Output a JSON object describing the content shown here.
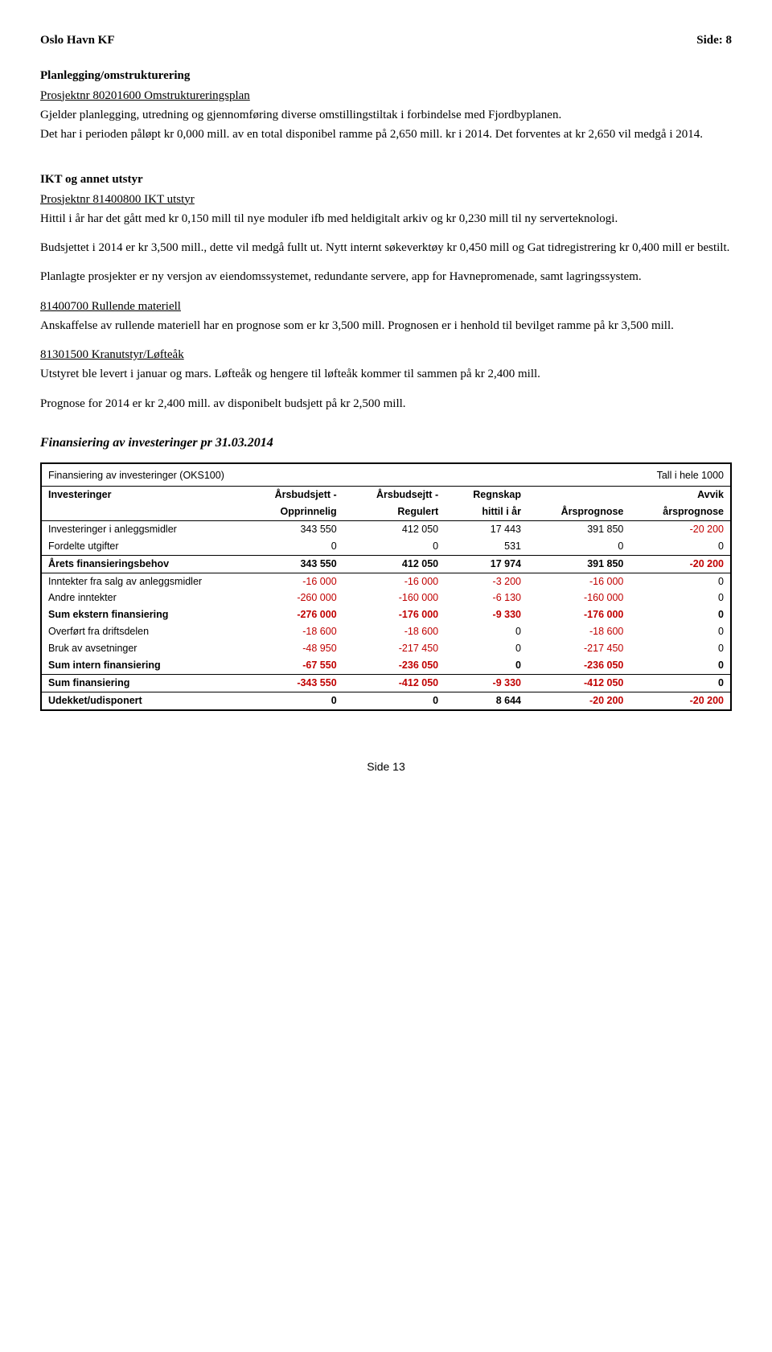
{
  "header": {
    "left": "Oslo Havn KF",
    "right": "Side:  8"
  },
  "s1": {
    "title": "Planlegging/omstrukturering",
    "proj": "Prosjektnr 80201600  Omstruktureringsplan",
    "p1": "Gjelder planlegging, utredning og gjennomføring diverse omstillingstiltak i forbindelse med Fjordbyplanen.",
    "p2": "Det har i perioden påløpt kr 0,000 mill. av en total disponibel ramme på 2,650 mill. kr i 2014. Det forventes at kr 2,650 vil medgå i 2014."
  },
  "s2": {
    "title": "IKT og annet utstyr",
    "proj": "Prosjektnr 81400800 IKT utstyr",
    "p1": "Hittil i år har det gått med kr 0,150 mill til nye moduler ifb med heldigitalt arkiv og kr 0,230 mill til ny serverteknologi.",
    "p2": "Budsjettet i 2014 er kr 3,500 mill., dette vil medgå fullt ut. Nytt internt søkeverktøy kr 0,450 mill og Gat tidregistrering kr 0,400 mill er bestilt.",
    "p3": "Planlagte prosjekter er ny versjon av eiendomssystemet, redundante servere, app for Havnepromenade, samt lagringssystem."
  },
  "s3": {
    "proj": " 81400700 Rullende materiell",
    "p1": "Anskaffelse av rullende materiell har en prognose som er kr 3,500 mill. Prognosen er i henhold til bevilget ramme på kr 3,500 mill."
  },
  "s4": {
    "proj": "81301500 Kranutstyr/Løfteåk",
    "p1": "Utstyret ble levert i januar og mars. Løfteåk og hengere til løfteåk kommer til sammen på kr 2,400 mill.",
    "p2": "Prognose for 2014 er kr 2,400 mill. av disponibelt budsjett på kr 2,500 mill."
  },
  "fin_heading": "Finansiering av investeringer pr 31.03.2014",
  "table": {
    "caption_left": "Finansiering av investeringer (OKS100)",
    "caption_right": "Tall i hele 1000",
    "head_row1": [
      "Investeringer",
      "Årsbudsjett -",
      "Årsbudsejtt -",
      "Regnskap",
      "",
      "Avvik"
    ],
    "head_row2": [
      "",
      "Opprinnelig",
      "Regulert",
      "hittil i år",
      "Årsprognose",
      "årsprognose"
    ],
    "rows": [
      {
        "label": "Investeringer i anleggsmidler",
        "c": [
          "343 550",
          "412 050",
          "17 443",
          "391 850",
          "-20 200"
        ],
        "bold": false,
        "top": false
      },
      {
        "label": "Fordelte utgifter",
        "c": [
          "0",
          "0",
          "531",
          "0",
          "0"
        ],
        "bold": false,
        "top": false
      },
      {
        "label": "Årets finansieringsbehov",
        "c": [
          "343 550",
          "412 050",
          "17 974",
          "391 850",
          "-20 200"
        ],
        "bold": true,
        "top": true
      },
      {
        "label": "Inntekter fra salg av anleggsmidler",
        "c": [
          "-16 000",
          "-16 000",
          "-3 200",
          "-16 000",
          "0"
        ],
        "bold": false,
        "top": true
      },
      {
        "label": "Andre inntekter",
        "c": [
          "-260 000",
          "-160 000",
          "-6 130",
          "-160 000",
          "0"
        ],
        "bold": false,
        "top": false
      },
      {
        "label": "Sum ekstern finansiering",
        "c": [
          "-276 000",
          "-176 000",
          "-9 330",
          "-176 000",
          "0"
        ],
        "bold": true,
        "top": false
      },
      {
        "label": "Overført fra driftsdelen",
        "c": [
          "-18 600",
          "-18 600",
          "0",
          "-18 600",
          "0"
        ],
        "bold": false,
        "top": false
      },
      {
        "label": "Bruk av avsetninger",
        "c": [
          "-48 950",
          "-217 450",
          "0",
          "-217 450",
          "0"
        ],
        "bold": false,
        "top": false
      },
      {
        "label": "Sum intern finansiering",
        "c": [
          "-67 550",
          "-236 050",
          "0",
          "-236 050",
          "0"
        ],
        "bold": true,
        "top": false
      },
      {
        "label": "Sum finansiering",
        "c": [
          "-343 550",
          "-412 050",
          "-9 330",
          "-412 050",
          "0"
        ],
        "bold": true,
        "top": true
      },
      {
        "label": "Udekket/udisponert",
        "c": [
          "0",
          "0",
          "8 644",
          "-20 200",
          "-20 200"
        ],
        "bold": true,
        "top": true
      }
    ]
  },
  "footer": "Side 13"
}
